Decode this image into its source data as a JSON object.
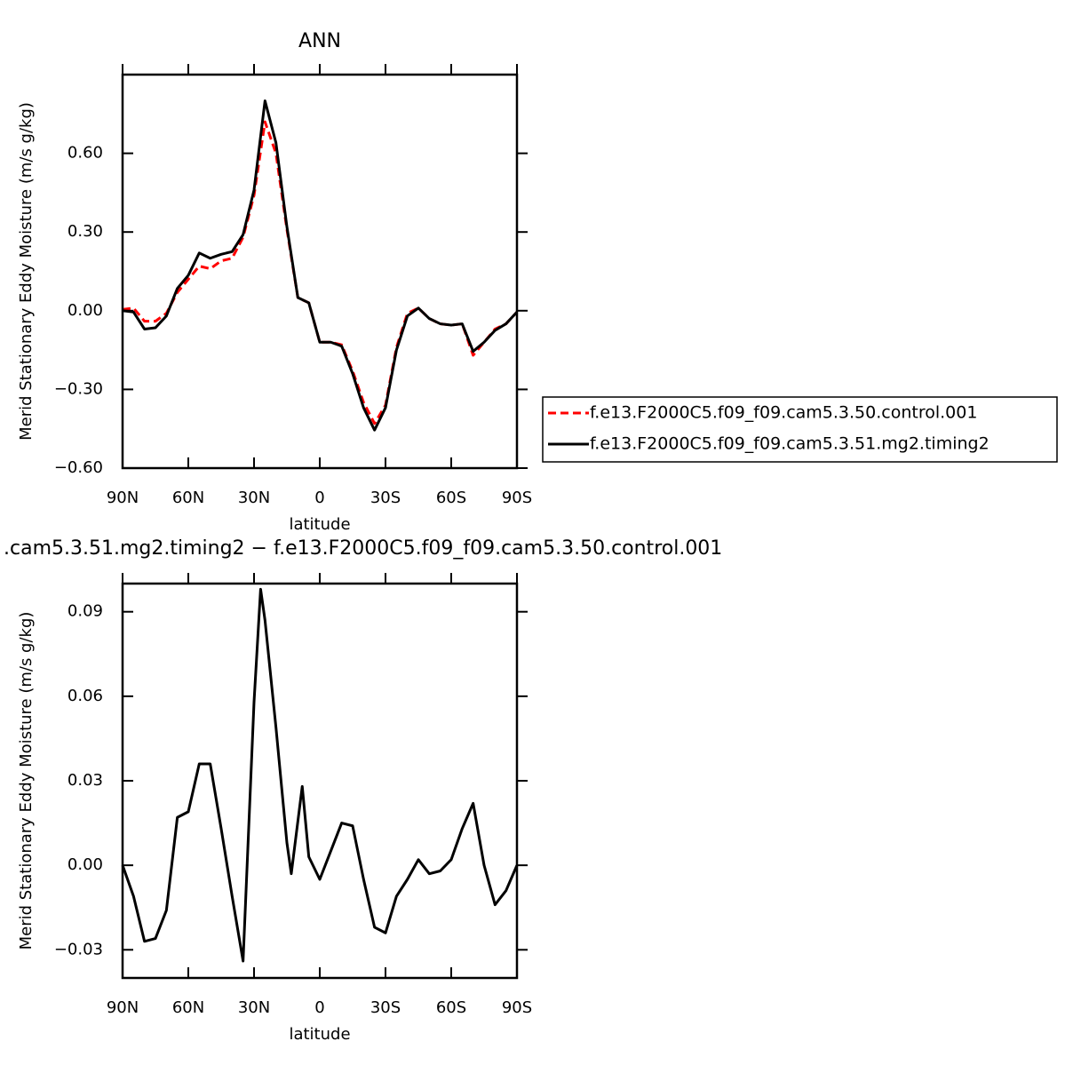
{
  "chart_data": [
    {
      "type": "line",
      "title": "ANN",
      "xlabel": "latitude",
      "ylabel": "Merid Stationary Eddy Moisture (m/s g/kg)",
      "x": [
        90,
        85,
        80,
        75,
        70,
        65,
        60,
        55,
        50,
        45,
        40,
        35,
        30,
        25,
        20,
        15,
        10,
        5,
        0,
        -5,
        -10,
        -15,
        -20,
        -25,
        -30,
        -35,
        -40,
        -45,
        -50,
        -55,
        -60,
        -65,
        -70,
        -75,
        -80,
        -85,
        -90
      ],
      "xlim": [
        90,
        -90
      ],
      "xticks": [
        {
          "value": 90,
          "label": "90N"
        },
        {
          "value": 60,
          "label": "60N"
        },
        {
          "value": 30,
          "label": "30N"
        },
        0,
        {
          "value": -30,
          "label": "30S"
        },
        {
          "value": -60,
          "label": "60S"
        },
        {
          "value": -90,
          "label": "90S"
        }
      ],
      "ylim": [
        -0.6,
        0.9
      ],
      "yticks": [
        {
          "value": -0.6,
          "label": "−0.60"
        },
        {
          "value": -0.3,
          "label": "−0.30"
        },
        {
          "value": 0,
          "label": "0.00"
        },
        {
          "value": 0.3,
          "label": "0.30"
        },
        {
          "value": 0.6,
          "label": "0.60"
        }
      ],
      "legend": "right",
      "series": [
        {
          "name": "f.e13.F2000C5.f09_f09.cam5.3.50.control.001",
          "color": "#ff0000",
          "line_style": "dashed",
          "values": [
            0.005,
            0.01,
            -0.04,
            -0.04,
            -0.01,
            0.07,
            0.12,
            0.17,
            0.16,
            0.19,
            0.2,
            0.28,
            0.44,
            0.72,
            0.6,
            0.31,
            0.05,
            0.03,
            -0.12,
            -0.12,
            -0.13,
            -0.23,
            -0.35,
            -0.43,
            -0.36,
            -0.14,
            -0.01,
            0.01,
            -0.03,
            -0.05,
            -0.055,
            -0.05,
            -0.17,
            -0.12,
            -0.07,
            -0.05,
            -0.005
          ]
        },
        {
          "name": "f.e13.F2000C5.f09_f09.cam5.3.51.mg2.timing2",
          "color": "#000000",
          "line_style": "solid",
          "values": [
            0,
            -0.005,
            -0.07,
            -0.065,
            -0.02,
            0.085,
            0.135,
            0.22,
            0.2,
            0.215,
            0.225,
            0.29,
            0.46,
            0.8,
            0.64,
            0.32,
            0.05,
            0.03,
            -0.12,
            -0.12,
            -0.135,
            -0.24,
            -0.37,
            -0.455,
            -0.37,
            -0.15,
            -0.02,
            0.01,
            -0.03,
            -0.05,
            -0.055,
            -0.05,
            -0.155,
            -0.12,
            -0.075,
            -0.05,
            -0.005
          ]
        }
      ]
    },
    {
      "type": "line",
      "title": ".cam5.3.51.mg2.timing2 − f.e13.F2000C5.f09_f09.cam5.3.50.control.001",
      "xlabel": "latitude",
      "ylabel": "Merid Stationary Eddy Moisture (m/s g/kg)",
      "x": [
        90,
        85,
        80,
        75,
        70,
        65,
        60,
        55,
        50,
        45,
        40,
        35,
        30,
        27,
        25,
        20,
        15,
        13,
        8,
        5,
        0,
        -5,
        -10,
        -15,
        -20,
        -25,
        -30,
        -35,
        -40,
        -45,
        -50,
        -55,
        -60,
        -65,
        -70,
        -75,
        -80,
        -85,
        -90
      ],
      "xlim": [
        90,
        -90
      ],
      "xticks": [
        {
          "value": 90,
          "label": "90N"
        },
        {
          "value": 60,
          "label": "60N"
        },
        {
          "value": 30,
          "label": "30N"
        },
        0,
        {
          "value": -30,
          "label": "30S"
        },
        {
          "value": -60,
          "label": "60S"
        },
        {
          "value": -90,
          "label": "90S"
        }
      ],
      "ylim": [
        -0.04,
        0.1
      ],
      "yticks": [
        {
          "value": -0.03,
          "label": "−0.03"
        },
        {
          "value": 0,
          "label": "0.00"
        },
        {
          "value": 0.03,
          "label": "0.03"
        },
        {
          "value": 0.06,
          "label": "0.06"
        },
        {
          "value": 0.09,
          "label": "0.09"
        }
      ],
      "series": [
        {
          "color": "#000000",
          "line_style": "solid",
          "values": [
            0,
            -0.011,
            -0.027,
            -0.026,
            -0.016,
            0.017,
            0.019,
            0.036,
            0.036,
            0.013,
            -0.011,
            -0.034,
            0.058,
            0.098,
            0.087,
            0.049,
            0.008,
            -0.003,
            0.028,
            0.003,
            -0.005,
            0.005,
            0.015,
            0.014,
            -0.005,
            -0.022,
            -0.024,
            -0.011,
            -0.005,
            0.002,
            -0.003,
            -0.002,
            0.002,
            0.013,
            0.022,
            0,
            -0.014,
            -0.009,
            0
          ]
        }
      ]
    }
  ]
}
